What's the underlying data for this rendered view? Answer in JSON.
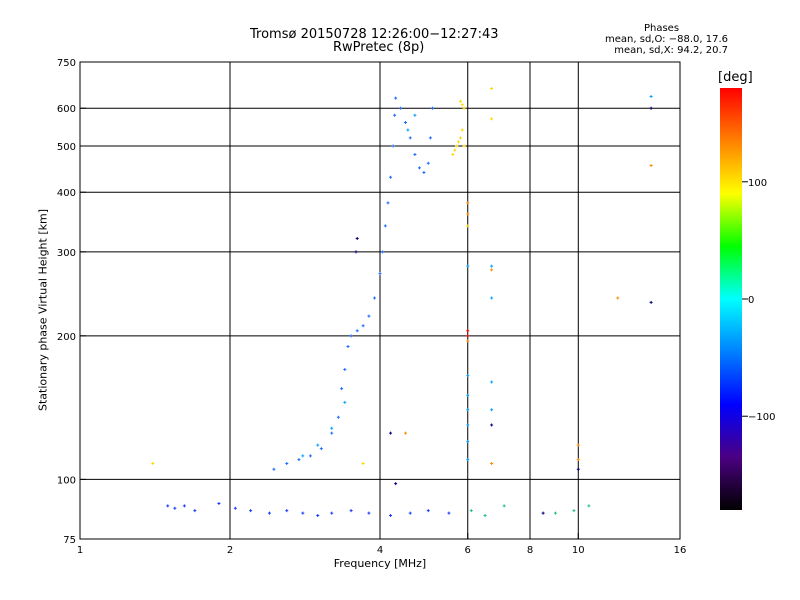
{
  "header": {
    "title": "Tromsø 20150728 12:26:00−12:27:43",
    "subtitle": "RwPretec (8p)",
    "stats_title": "Phases",
    "stats_line1": "mean, sd,O: −88.0, 17.6",
    "stats_line2": "mean, sd,X: 94.2, 20.7"
  },
  "colorbar": {
    "unit_label": "[deg]",
    "range": [
      -180,
      180
    ],
    "ticks": [
      {
        "value": 100,
        "label": "100"
      },
      {
        "value": 0,
        "label": "0"
      },
      {
        "value": -100,
        "label": "−100"
      }
    ],
    "color_stops": [
      "#000000",
      "#4b0082",
      "#0000ff",
      "#0080ff",
      "#00ffff",
      "#00ff00",
      "#ffff00",
      "#ff8000",
      "#ff0000"
    ]
  },
  "chart_data": {
    "type": "scatter",
    "title": "Tromsø 20150728 12:26:00−12:27:43",
    "subtitle": "RwPretec (8p)",
    "xlabel": "Frequency [MHz]",
    "ylabel": "Stationary phase Virtual Height [km]",
    "x_scale": "log",
    "y_scale": "log",
    "xlim": [
      1,
      16
    ],
    "ylim": [
      75,
      750
    ],
    "x_ticks": [
      1,
      2,
      4,
      6,
      8,
      10,
      16
    ],
    "y_ticks": [
      75,
      100,
      200,
      300,
      400,
      500,
      600,
      750
    ],
    "grid_x": [
      2,
      4,
      6,
      8,
      10
    ],
    "grid_y": [
      100,
      200,
      300,
      400,
      500,
      600
    ],
    "color_by": "phase [deg]",
    "series": [
      {
        "color": "#1a3cff",
        "points": [
          [
            1.5,
            88
          ],
          [
            1.55,
            87
          ],
          [
            1.62,
            88
          ],
          [
            1.7,
            86
          ],
          [
            1.9,
            89
          ],
          [
            2.05,
            87
          ],
          [
            2.2,
            86
          ],
          [
            2.4,
            85
          ],
          [
            2.6,
            86
          ],
          [
            2.8,
            85
          ],
          [
            3.0,
            84
          ],
          [
            3.2,
            85
          ],
          [
            3.5,
            86
          ],
          [
            3.8,
            85
          ],
          [
            4.2,
            84
          ],
          [
            4.6,
            85
          ],
          [
            5.0,
            86
          ],
          [
            5.5,
            85
          ]
        ]
      },
      {
        "color": "#1e6bff",
        "points": [
          [
            2.45,
            105
          ],
          [
            2.6,
            108
          ],
          [
            2.75,
            110
          ],
          [
            2.9,
            112
          ],
          [
            3.05,
            116
          ],
          [
            3.2,
            125
          ],
          [
            3.3,
            135
          ],
          [
            3.35,
            155
          ],
          [
            3.4,
            170
          ],
          [
            3.45,
            190
          ],
          [
            3.5,
            200
          ],
          [
            3.6,
            205
          ],
          [
            3.7,
            210
          ],
          [
            3.8,
            220
          ],
          [
            3.9,
            240
          ],
          [
            4.0,
            270
          ],
          [
            4.05,
            300
          ],
          [
            4.1,
            340
          ],
          [
            4.15,
            380
          ],
          [
            4.2,
            430
          ],
          [
            4.25,
            500
          ],
          [
            4.28,
            580
          ],
          [
            4.3,
            630
          ],
          [
            4.4,
            600
          ],
          [
            4.5,
            560
          ],
          [
            4.6,
            520
          ],
          [
            4.7,
            480
          ],
          [
            4.8,
            450
          ],
          [
            4.9,
            440
          ],
          [
            5.0,
            460
          ],
          [
            5.05,
            520
          ],
          [
            5.1,
            600
          ]
        ]
      },
      {
        "color": "#0aa0ff",
        "points": [
          [
            2.8,
            112
          ],
          [
            3.0,
            118
          ],
          [
            3.2,
            128
          ],
          [
            3.4,
            145
          ],
          [
            4.55,
            540
          ],
          [
            4.7,
            580
          ],
          [
            6.0,
            280
          ],
          [
            6.0,
            165
          ],
          [
            6.0,
            150
          ],
          [
            6.0,
            140
          ],
          [
            6.0,
            130
          ],
          [
            6.0,
            120
          ],
          [
            6.0,
            110
          ],
          [
            6.7,
            280
          ],
          [
            6.7,
            240
          ],
          [
            6.7,
            160
          ],
          [
            6.7,
            140
          ],
          [
            14,
            635
          ]
        ]
      },
      {
        "color": "#ffd700",
        "points": [
          [
            5.6,
            480
          ],
          [
            5.65,
            490
          ],
          [
            5.7,
            500
          ],
          [
            5.75,
            510
          ],
          [
            5.8,
            520
          ],
          [
            5.85,
            540
          ],
          [
            5.9,
            500
          ],
          [
            5.8,
            620
          ],
          [
            5.85,
            610
          ],
          [
            5.9,
            600
          ],
          [
            6.7,
            660
          ],
          [
            6.7,
            570
          ],
          [
            6.0,
            340
          ],
          [
            3.7,
            108
          ],
          [
            1.4,
            108
          ]
        ]
      },
      {
        "color": "#ff8c00",
        "points": [
          [
            6.0,
            380
          ],
          [
            6.0,
            360
          ],
          [
            6.7,
            275
          ],
          [
            6.7,
            108
          ],
          [
            10.0,
            110
          ],
          [
            10.0,
            118
          ],
          [
            12.0,
            240
          ],
          [
            14,
            455
          ],
          [
            14,
            600
          ],
          [
            4.5,
            125
          ],
          [
            6.0,
            195
          ]
        ]
      },
      {
        "color": "#ff0000",
        "points": [
          [
            6.0,
            205
          ],
          [
            6.0,
            200
          ]
        ]
      },
      {
        "color": "#000080",
        "points": [
          [
            3.6,
            320
          ],
          [
            3.58,
            300
          ],
          [
            4.2,
            125
          ],
          [
            6.7,
            130
          ],
          [
            8.5,
            85
          ],
          [
            10.0,
            105
          ],
          [
            14,
            235
          ],
          [
            14,
            600
          ],
          [
            4.3,
            98
          ]
        ]
      },
      {
        "color": "#20c080",
        "points": [
          [
            6.1,
            86
          ],
          [
            6.5,
            84
          ],
          [
            7.1,
            88
          ],
          [
            9.0,
            85
          ],
          [
            9.8,
            86
          ],
          [
            10.5,
            88
          ]
        ]
      }
    ]
  }
}
